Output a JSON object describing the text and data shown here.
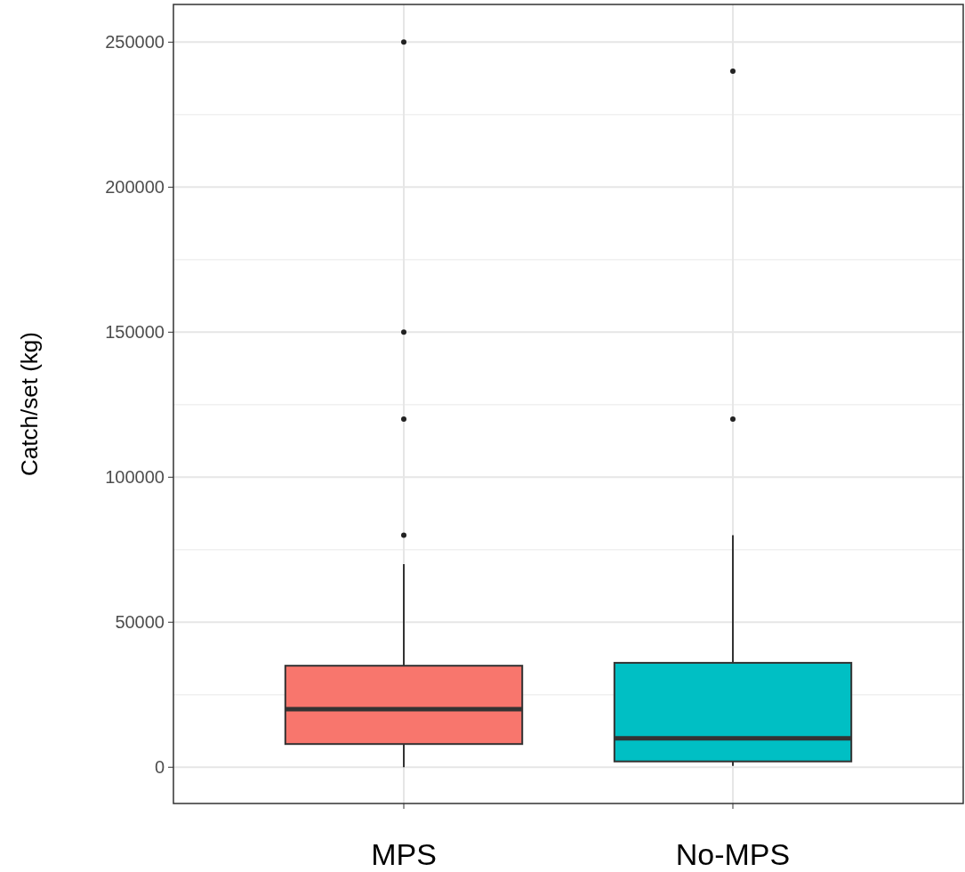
{
  "chart_data": {
    "type": "box",
    "ylabel": "Catch/set (kg)",
    "categories": [
      "MPS",
      "No-MPS"
    ],
    "colors": [
      "#f8766d",
      "#00bfc4"
    ],
    "boxes": [
      {
        "low": 0,
        "q1": 8000,
        "median": 20000,
        "q3": 35000,
        "high": 70000,
        "outliers": [
          80000,
          120000,
          150000,
          250000
        ]
      },
      {
        "low": 500,
        "q1": 2000,
        "median": 10000,
        "q3": 36000,
        "high": 80000,
        "outliers": [
          120000,
          240000
        ]
      }
    ],
    "ylim": [
      -12500,
      263000
    ],
    "yticks": [
      0,
      50000,
      100000,
      150000,
      200000,
      250000
    ],
    "grid": true
  }
}
